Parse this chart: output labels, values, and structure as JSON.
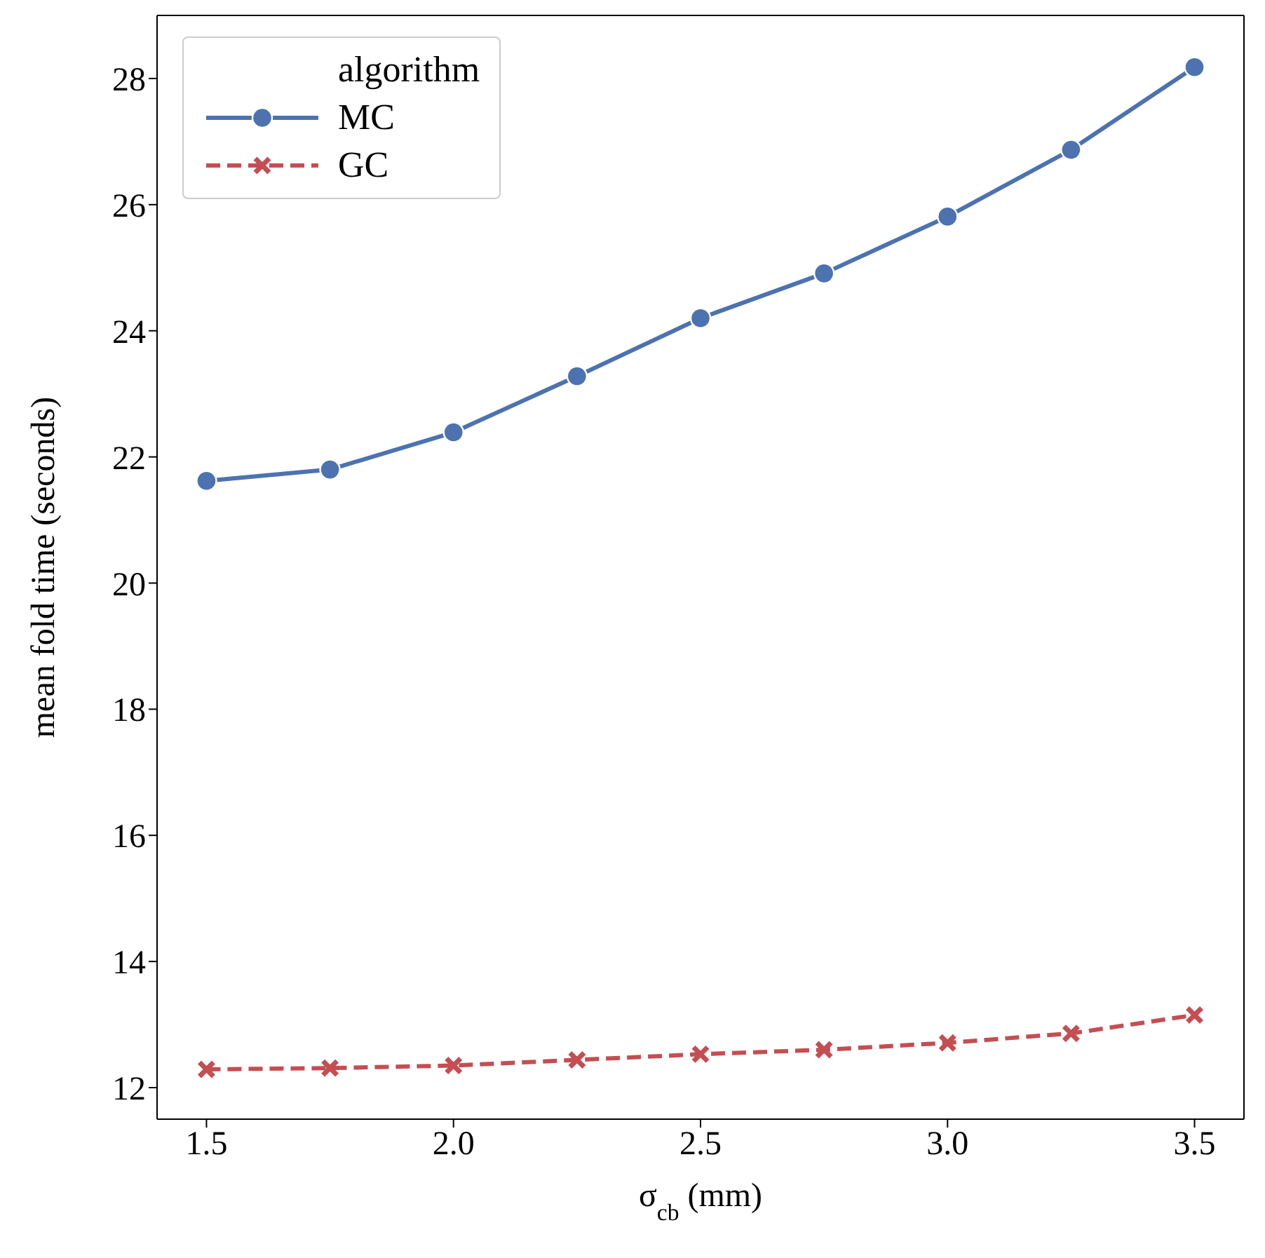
{
  "chart_data": {
    "type": "line",
    "xlabel": "σ$_{cb}$ (mm)",
    "ylabel": "mean fold time (seconds)",
    "legend_title": "algorithm",
    "legend": "top left",
    "grid": false,
    "x": [
      1.5,
      1.75,
      2.0,
      2.25,
      2.5,
      2.75,
      3.0,
      3.25,
      3.5
    ],
    "series": [
      {
        "name": "MC",
        "color": "#4c72b0",
        "marker": "circle",
        "line_style": "solid",
        "values": [
          21.62,
          21.8,
          22.39,
          23.28,
          24.2,
          24.91,
          25.81,
          26.87,
          28.18
        ]
      },
      {
        "name": "GC",
        "color": "#c44e52",
        "marker": "cross",
        "line_style": "dashed",
        "values": [
          12.29,
          12.31,
          12.35,
          12.44,
          12.53,
          12.6,
          12.71,
          12.86,
          13.15
        ]
      }
    ],
    "xlim": [
      1.4,
      3.6
    ],
    "xticks": [
      1.5,
      {
        "value": 2,
        "label": "2.0"
      },
      2.5,
      {
        "value": 3,
        "label": "3.0"
      },
      3.5
    ],
    "ylim": [
      11.5,
      29.0
    ],
    "yticks": [
      12,
      14,
      16,
      18,
      20,
      22,
      24,
      26,
      28
    ]
  }
}
